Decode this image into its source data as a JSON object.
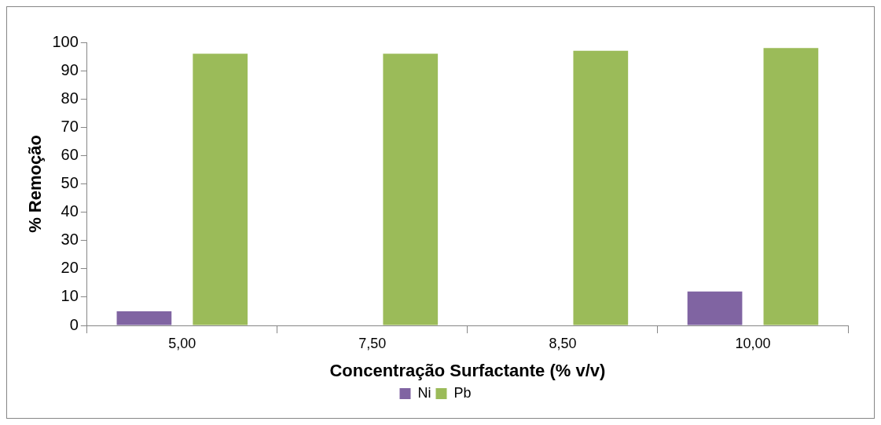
{
  "chart_data": {
    "type": "bar",
    "xlabel": "Concentração Surfactante (% v/v)",
    "ylabel": "% Remoção",
    "categories": [
      "5,00",
      "7,50",
      "8,50",
      "10,00"
    ],
    "series": [
      {
        "name": "Ni",
        "color": "#8064a2",
        "values": [
          5,
          0,
          0,
          12
        ]
      },
      {
        "name": "Pb",
        "color": "#9bbb59",
        "values": [
          96,
          96,
          97,
          98
        ]
      }
    ],
    "ylim": [
      0,
      100
    ],
    "yticks": [
      0,
      10,
      20,
      30,
      40,
      50,
      60,
      70,
      80,
      90,
      100
    ],
    "grid": false,
    "legend": "bottom"
  }
}
